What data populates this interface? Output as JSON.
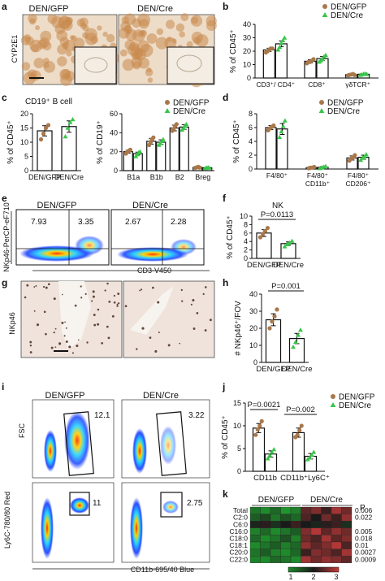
{
  "colors": {
    "gfp": "#a9784b",
    "cre": "#39c54a",
    "ihc_bg": "#eddcc8",
    "ihc_stain": "#c98a4e",
    "nk_bg": "#efe3dc",
    "nk_spot": "#4a2a1e",
    "hm_low": "#1f8a2c",
    "hm_mid": "#1a1a1a",
    "hm_high": "#c33a3a"
  },
  "panel_a": {
    "label": "a",
    "groups": [
      "DEN/GFP",
      "DEN/Cre"
    ],
    "ylabel": "CYP2E1"
  },
  "panel_b": {
    "label": "b",
    "legend": [
      "DEN/GFP",
      "DEN/Cre"
    ]
  },
  "panel_c": {
    "label": "c",
    "title": "CD19⁺ B cell",
    "legend": [
      "DEN/GFP",
      "DEN/Cre"
    ]
  },
  "panel_d": {
    "label": "d",
    "legend": [
      "DEN/GFP",
      "DEN/Cre"
    ]
  },
  "panel_e": {
    "label": "e",
    "groups": [
      "DEN/GFP",
      "DEN/Cre"
    ],
    "quadrants": [
      {
        "upper_left": "7.93",
        "upper_right": "3.35"
      },
      {
        "upper_left": "2.67",
        "upper_right": "2.28"
      }
    ],
    "ylabel": "NKp46-PerCP-eF710",
    "xlabel": "CD3-V450"
  },
  "panel_f": {
    "label": "f",
    "title": "NK",
    "pvalue": "P=0.0113"
  },
  "panel_g": {
    "label": "g",
    "ylabel": "NKp46"
  },
  "panel_h": {
    "label": "h",
    "pvalue": "P=0.001"
  },
  "panel_i": {
    "label": "i",
    "groups": [
      "DEN/GFP",
      "DEN/Cre"
    ],
    "top_gates": [
      "12.1",
      "3.22"
    ],
    "bottom_gates": [
      "11",
      "2.75"
    ],
    "ylabel_top": "FSC",
    "ylabel_bottom": "Ly6C-780/80 Red",
    "xlabel": "CD11b-695/40 Blue"
  },
  "panel_j": {
    "label": "j",
    "legend": [
      "DEN/GFP",
      "DEN/Cre"
    ],
    "pvalues": [
      "P=0.0021",
      "P=0.002"
    ]
  },
  "panel_k": {
    "label": "k",
    "groups": [
      "DEN/GFP",
      "DEN/Cre"
    ],
    "rows": [
      "Total",
      "C2:0",
      "C6:0",
      "C16:0",
      "C18:0",
      "C18:1",
      "C20:0",
      "C22:0"
    ],
    "p_header": "P",
    "pvalues": [
      "0.006",
      "0.022",
      "",
      "0.005",
      "0.018",
      "0.01",
      "0.0027",
      "0.0009"
    ],
    "scale_ticks": [
      "1",
      "2",
      "3"
    ]
  },
  "chart_data": [
    {
      "id": "b",
      "type": "bar",
      "ylabel": "% of CD45⁺",
      "ylim": [
        0,
        40
      ],
      "yticks": [
        "0",
        "10",
        "20",
        "30",
        "40"
      ],
      "categories": [
        "CD3⁺/ CD4⁺",
        "CD8⁺",
        "γδTCR⁺"
      ],
      "series": [
        {
          "name": "DEN/GFP",
          "values": [
            21,
            12.5,
            2.5
          ],
          "errors": [
            1.2,
            1.2,
            0.5
          ],
          "points": [
            [
              19,
              20,
              21,
              22,
              22
            ],
            [
              11,
              12,
              12,
              13,
              14
            ],
            [
              2,
              2.4,
              2.6,
              3,
              2.2
            ]
          ]
        },
        {
          "name": "DEN/Cre",
          "values": [
            25.5,
            14.5,
            2.8
          ],
          "errors": [
            2.2,
            1.5,
            0.5
          ],
          "points": [
            [
              21,
              23,
              26,
              28,
              30
            ],
            [
              12,
              13,
              14,
              16,
              17
            ],
            [
              2.2,
              2.6,
              3,
              3.2,
              2.8
            ]
          ]
        }
      ]
    },
    {
      "id": "c-left",
      "type": "bar",
      "ylabel": "% of CD45⁺",
      "ylim": [
        0,
        20
      ],
      "yticks": [
        "0",
        "5",
        "10",
        "15",
        "20"
      ],
      "categories": [
        "DEN/GFP",
        "DEN/Cre"
      ],
      "series": [
        {
          "name": "CD19⁺ B cell",
          "values": [
            14,
            15.5
          ],
          "errors": [
            1.8,
            2.0
          ],
          "points": [
            [
              11,
              13,
              15,
              16
            ],
            [
              12,
              15,
              17,
              18
            ]
          ]
        }
      ]
    },
    {
      "id": "c-right",
      "type": "bar",
      "ylabel": "% of CD19⁺",
      "ylim": [
        0,
        60
      ],
      "yticks": [
        "0",
        "20",
        "40",
        "60"
      ],
      "categories": [
        "B1a",
        "B1b",
        "B2",
        "Breg"
      ],
      "series": [
        {
          "name": "DEN/GFP",
          "values": [
            20,
            31,
            45,
            3.5
          ],
          "errors": [
            1.5,
            3,
            3,
            0.5
          ],
          "points": [
            [
              18,
              20,
              21,
              22
            ],
            [
              27,
              30,
              33,
              35
            ],
            [
              42,
              44,
              47,
              49
            ],
            [
              3,
              3.5,
              4,
              3.2
            ]
          ]
        },
        {
          "name": "DEN/Cre",
          "values": [
            18,
            30,
            46,
            3
          ],
          "errors": [
            1.5,
            2.5,
            2.5,
            0.5
          ],
          "points": [
            [
              15,
              17,
              19,
              20
            ],
            [
              27,
              29,
              31,
              33
            ],
            [
              43,
              45,
              47,
              49
            ],
            [
              2.5,
              3,
              3.3,
              2.8
            ]
          ]
        }
      ]
    },
    {
      "id": "d",
      "type": "bar",
      "ylabel": "% of CD45⁺",
      "ylim": [
        0,
        8
      ],
      "yticks": [
        "0",
        "2",
        "4",
        "6",
        "8"
      ],
      "categories": [
        "F4/80⁺",
        "F4/80⁺ CD11b⁺",
        "F4/80⁺ CD206⁺"
      ],
      "series": [
        {
          "name": "DEN/GFP",
          "values": [
            6,
            0.2,
            1.6
          ],
          "errors": [
            0.3,
            0.1,
            0.3
          ],
          "points": [
            [
              5.6,
              5.9,
              6.1,
              6.3
            ],
            [
              0.1,
              0.2,
              0.2,
              0.3
            ],
            [
              1.2,
              1.5,
              1.7,
              2
            ]
          ]
        },
        {
          "name": "DEN/Cre",
          "values": [
            5.8,
            0.25,
            1.7
          ],
          "errors": [
            0.8,
            0.1,
            0.3
          ],
          "points": [
            [
              4.6,
              5.4,
              6.2,
              7
            ],
            [
              0.1,
              0.2,
              0.3,
              0.4
            ],
            [
              1.3,
              1.6,
              1.8,
              2.1
            ]
          ]
        }
      ]
    },
    {
      "id": "f",
      "type": "bar",
      "ylabel": "% of CD45⁺",
      "ylim": [
        0,
        10
      ],
      "yticks": [
        "0",
        "2",
        "4",
        "6",
        "8",
        "10"
      ],
      "categories": [
        "DEN/GFP",
        "DEN/Cre"
      ],
      "series": [
        {
          "name": "NK",
          "values": [
            6,
            3.5
          ],
          "errors": [
            0.8,
            0.4
          ],
          "points": [
            [
              5,
              5.8,
              6.5,
              7.2
            ],
            [
              2.8,
              3.3,
              3.7,
              4.1
            ]
          ]
        }
      ]
    },
    {
      "id": "h",
      "type": "bar",
      "ylabel": "# NKp46⁺/FOV",
      "ylim": [
        0,
        40
      ],
      "yticks": [
        "0",
        "10",
        "20",
        "30",
        "40"
      ],
      "categories": [
        "DEN/GFP",
        "DEN/Cre"
      ],
      "series": [
        {
          "name": "NKp46⁺",
          "values": [
            25,
            14
          ],
          "errors": [
            3.5,
            3
          ],
          "points": [
            [
              20,
              24,
              27,
              31
            ],
            [
              9,
              12,
              16,
              19
            ]
          ]
        }
      ]
    },
    {
      "id": "j",
      "type": "bar",
      "ylabel": "% of CD45⁺",
      "ylim": [
        0,
        15
      ],
      "yticks": [
        "0",
        "5",
        "10",
        "15"
      ],
      "categories": [
        "CD11b",
        "CD11b⁺Ly6C⁺"
      ],
      "series": [
        {
          "name": "DEN/GFP",
          "values": [
            9.5,
            8.5
          ],
          "errors": [
            1.0,
            1.0
          ],
          "points": [
            [
              8,
              9.2,
              10,
              11
            ],
            [
              7.5,
              8,
              9,
              10
            ]
          ]
        },
        {
          "name": "DEN/Cre",
          "values": [
            3.8,
            3.3
          ],
          "errors": [
            0.7,
            0.6
          ],
          "points": [
            [
              2.8,
              3.5,
              4.2,
              4.8
            ],
            [
              2.6,
              3,
              3.6,
              4.2
            ]
          ]
        }
      ]
    },
    {
      "id": "k",
      "type": "heatmap",
      "rows": [
        "Total",
        "C2:0",
        "C6:0",
        "C16:0",
        "C18:0",
        "C18:1",
        "C20:0",
        "C22:0"
      ],
      "columns": 10,
      "group_split": 5,
      "values": [
        [
          1.2,
          1.0,
          1.3,
          0.9,
          1.1,
          2.4,
          2.6,
          2.2,
          2.8,
          2.5
        ],
        [
          1.4,
          1.6,
          1.2,
          1.5,
          1.3,
          2.3,
          2.0,
          2.5,
          2.2,
          2.7
        ],
        [
          1.9,
          2.1,
          1.8,
          2.0,
          2.2,
          2.0,
          1.9,
          2.1,
          2.2,
          1.8
        ],
        [
          1.1,
          1.3,
          1.0,
          1.2,
          1.4,
          2.6,
          2.9,
          2.4,
          2.7,
          2.5
        ],
        [
          1.3,
          1.0,
          1.2,
          1.5,
          1.1,
          2.5,
          2.3,
          2.8,
          2.4,
          2.6
        ],
        [
          1.0,
          1.2,
          1.4,
          1.1,
          1.3,
          2.7,
          2.4,
          2.6,
          2.9,
          2.3
        ],
        [
          1.2,
          1.4,
          1.1,
          1.0,
          1.3,
          2.2,
          2.6,
          2.5,
          2.3,
          2.8
        ],
        [
          1.1,
          1.0,
          1.3,
          1.2,
          1.0,
          2.8,
          2.5,
          2.7,
          2.6,
          2.4
        ]
      ],
      "scale": [
        1,
        3
      ]
    }
  ]
}
